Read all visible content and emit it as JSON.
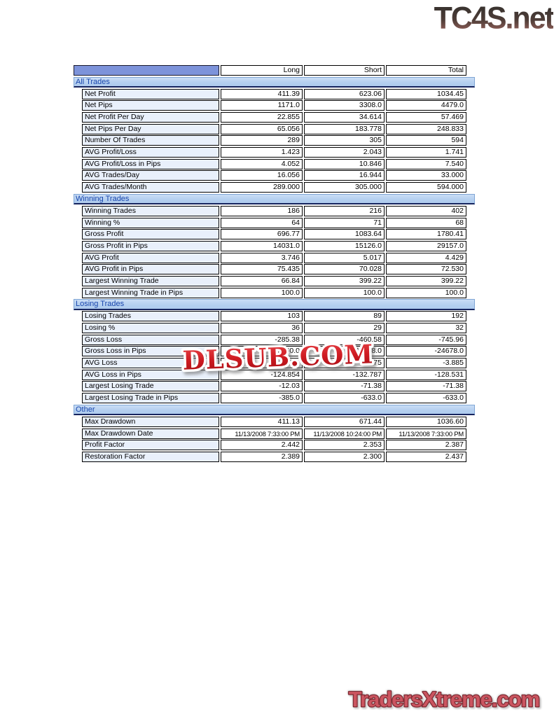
{
  "branding": {
    "top_logo_text": "TC4S.net",
    "watermark_text": "DLSUB.COM",
    "bottom_logo_text": "TradersXtreme.com"
  },
  "colors": {
    "header_cell_blue": "#7d93da",
    "section_bar_blue": "#bad3f0",
    "label_cell_blue": "#e9f0fb",
    "section_text_blue": "#1845ac",
    "watermark_red": "#bb1118",
    "bottom_logo_red": "#cb5560"
  },
  "table": {
    "columns": [
      "Long",
      "Short",
      "Total"
    ],
    "sections": [
      {
        "title": "All Trades",
        "rows": [
          {
            "label": "Net Profit",
            "values": [
              "411.39",
              "623.06",
              "1034.45"
            ]
          },
          {
            "label": "Net Pips",
            "values": [
              "1171.0",
              "3308.0",
              "4479.0"
            ]
          },
          {
            "label": "Net Profit Per Day",
            "values": [
              "22.855",
              "34.614",
              "57.469"
            ]
          },
          {
            "label": "Net Pips Per Day",
            "values": [
              "65.056",
              "183.778",
              "248.833"
            ]
          },
          {
            "label": "Number Of Trades",
            "values": [
              "289",
              "305",
              "594"
            ]
          },
          {
            "label": "AVG Profit/Loss",
            "values": [
              "1.423",
              "2.043",
              "1.741"
            ]
          },
          {
            "label": "AVG Profit/Loss in Pips",
            "values": [
              "4.052",
              "10.846",
              "7.540"
            ]
          },
          {
            "label": "AVG Trades/Day",
            "values": [
              "16.056",
              "16.944",
              "33.000"
            ]
          },
          {
            "label": "AVG Trades/Month",
            "values": [
              "289.000",
              "305.000",
              "594.000"
            ]
          }
        ]
      },
      {
        "title": "Winning Trades",
        "rows": [
          {
            "label": "Winning Trades",
            "values": [
              "186",
              "216",
              "402"
            ]
          },
          {
            "label": "Winning %",
            "values": [
              "64",
              "71",
              "68"
            ]
          },
          {
            "label": "Gross Profit",
            "values": [
              "696.77",
              "1083.64",
              "1780.41"
            ]
          },
          {
            "label": "Gross Profit in Pips",
            "values": [
              "14031.0",
              "15126.0",
              "29157.0"
            ]
          },
          {
            "label": "AVG Profit",
            "values": [
              "3.746",
              "5.017",
              "4.429"
            ]
          },
          {
            "label": "AVG Profit in Pips",
            "values": [
              "75.435",
              "70.028",
              "72.530"
            ]
          },
          {
            "label": "Largest Winning Trade",
            "values": [
              "66.84",
              "399.22",
              "399.22"
            ]
          },
          {
            "label": "Largest Winning Trade in Pips",
            "values": [
              "100.0",
              "100.0",
              "100.0"
            ]
          }
        ]
      },
      {
        "title": "Losing Trades",
        "rows": [
          {
            "label": "Losing Trades",
            "values": [
              "103",
              "89",
              "192"
            ]
          },
          {
            "label": "Losing %",
            "values": [
              "36",
              "29",
              "32"
            ]
          },
          {
            "label": "Gross Loss",
            "values": [
              "-285.38",
              "-460.58",
              "-745.96"
            ]
          },
          {
            "label": "Gross Loss in Pips",
            "values": [
              "-12860.0",
              "-11818.0",
              "-24678.0"
            ]
          },
          {
            "label": "AVG Loss",
            "values": [
              "-2.771",
              "-5.175",
              "-3.885"
            ]
          },
          {
            "label": "AVG Loss in Pips",
            "values": [
              "-124.854",
              "-132.787",
              "-128.531"
            ]
          },
          {
            "label": "Largest Losing Trade",
            "values": [
              "-12.03",
              "-71.38",
              "-71.38"
            ]
          },
          {
            "label": "Largest Losing Trade in Pips",
            "values": [
              "-385.0",
              "-633.0",
              "-633.0"
            ]
          }
        ]
      },
      {
        "title": "Other",
        "rows": [
          {
            "label": "Max Drawdown",
            "values": [
              "411.13",
              "671.44",
              "1036.60"
            ]
          },
          {
            "label": "Max Drawdown Date",
            "values": [
              "11/13/2008 7:33:00 PM",
              "11/13/2008 10:24:00 PM",
              "11/13/2008 7:33:00 PM"
            ]
          },
          {
            "label": "Profit Factor",
            "values": [
              "2.442",
              "2.353",
              "2.387"
            ]
          },
          {
            "label": "Restoration Factor",
            "values": [
              "2.389",
              "2.300",
              "2.437"
            ]
          }
        ]
      }
    ]
  }
}
